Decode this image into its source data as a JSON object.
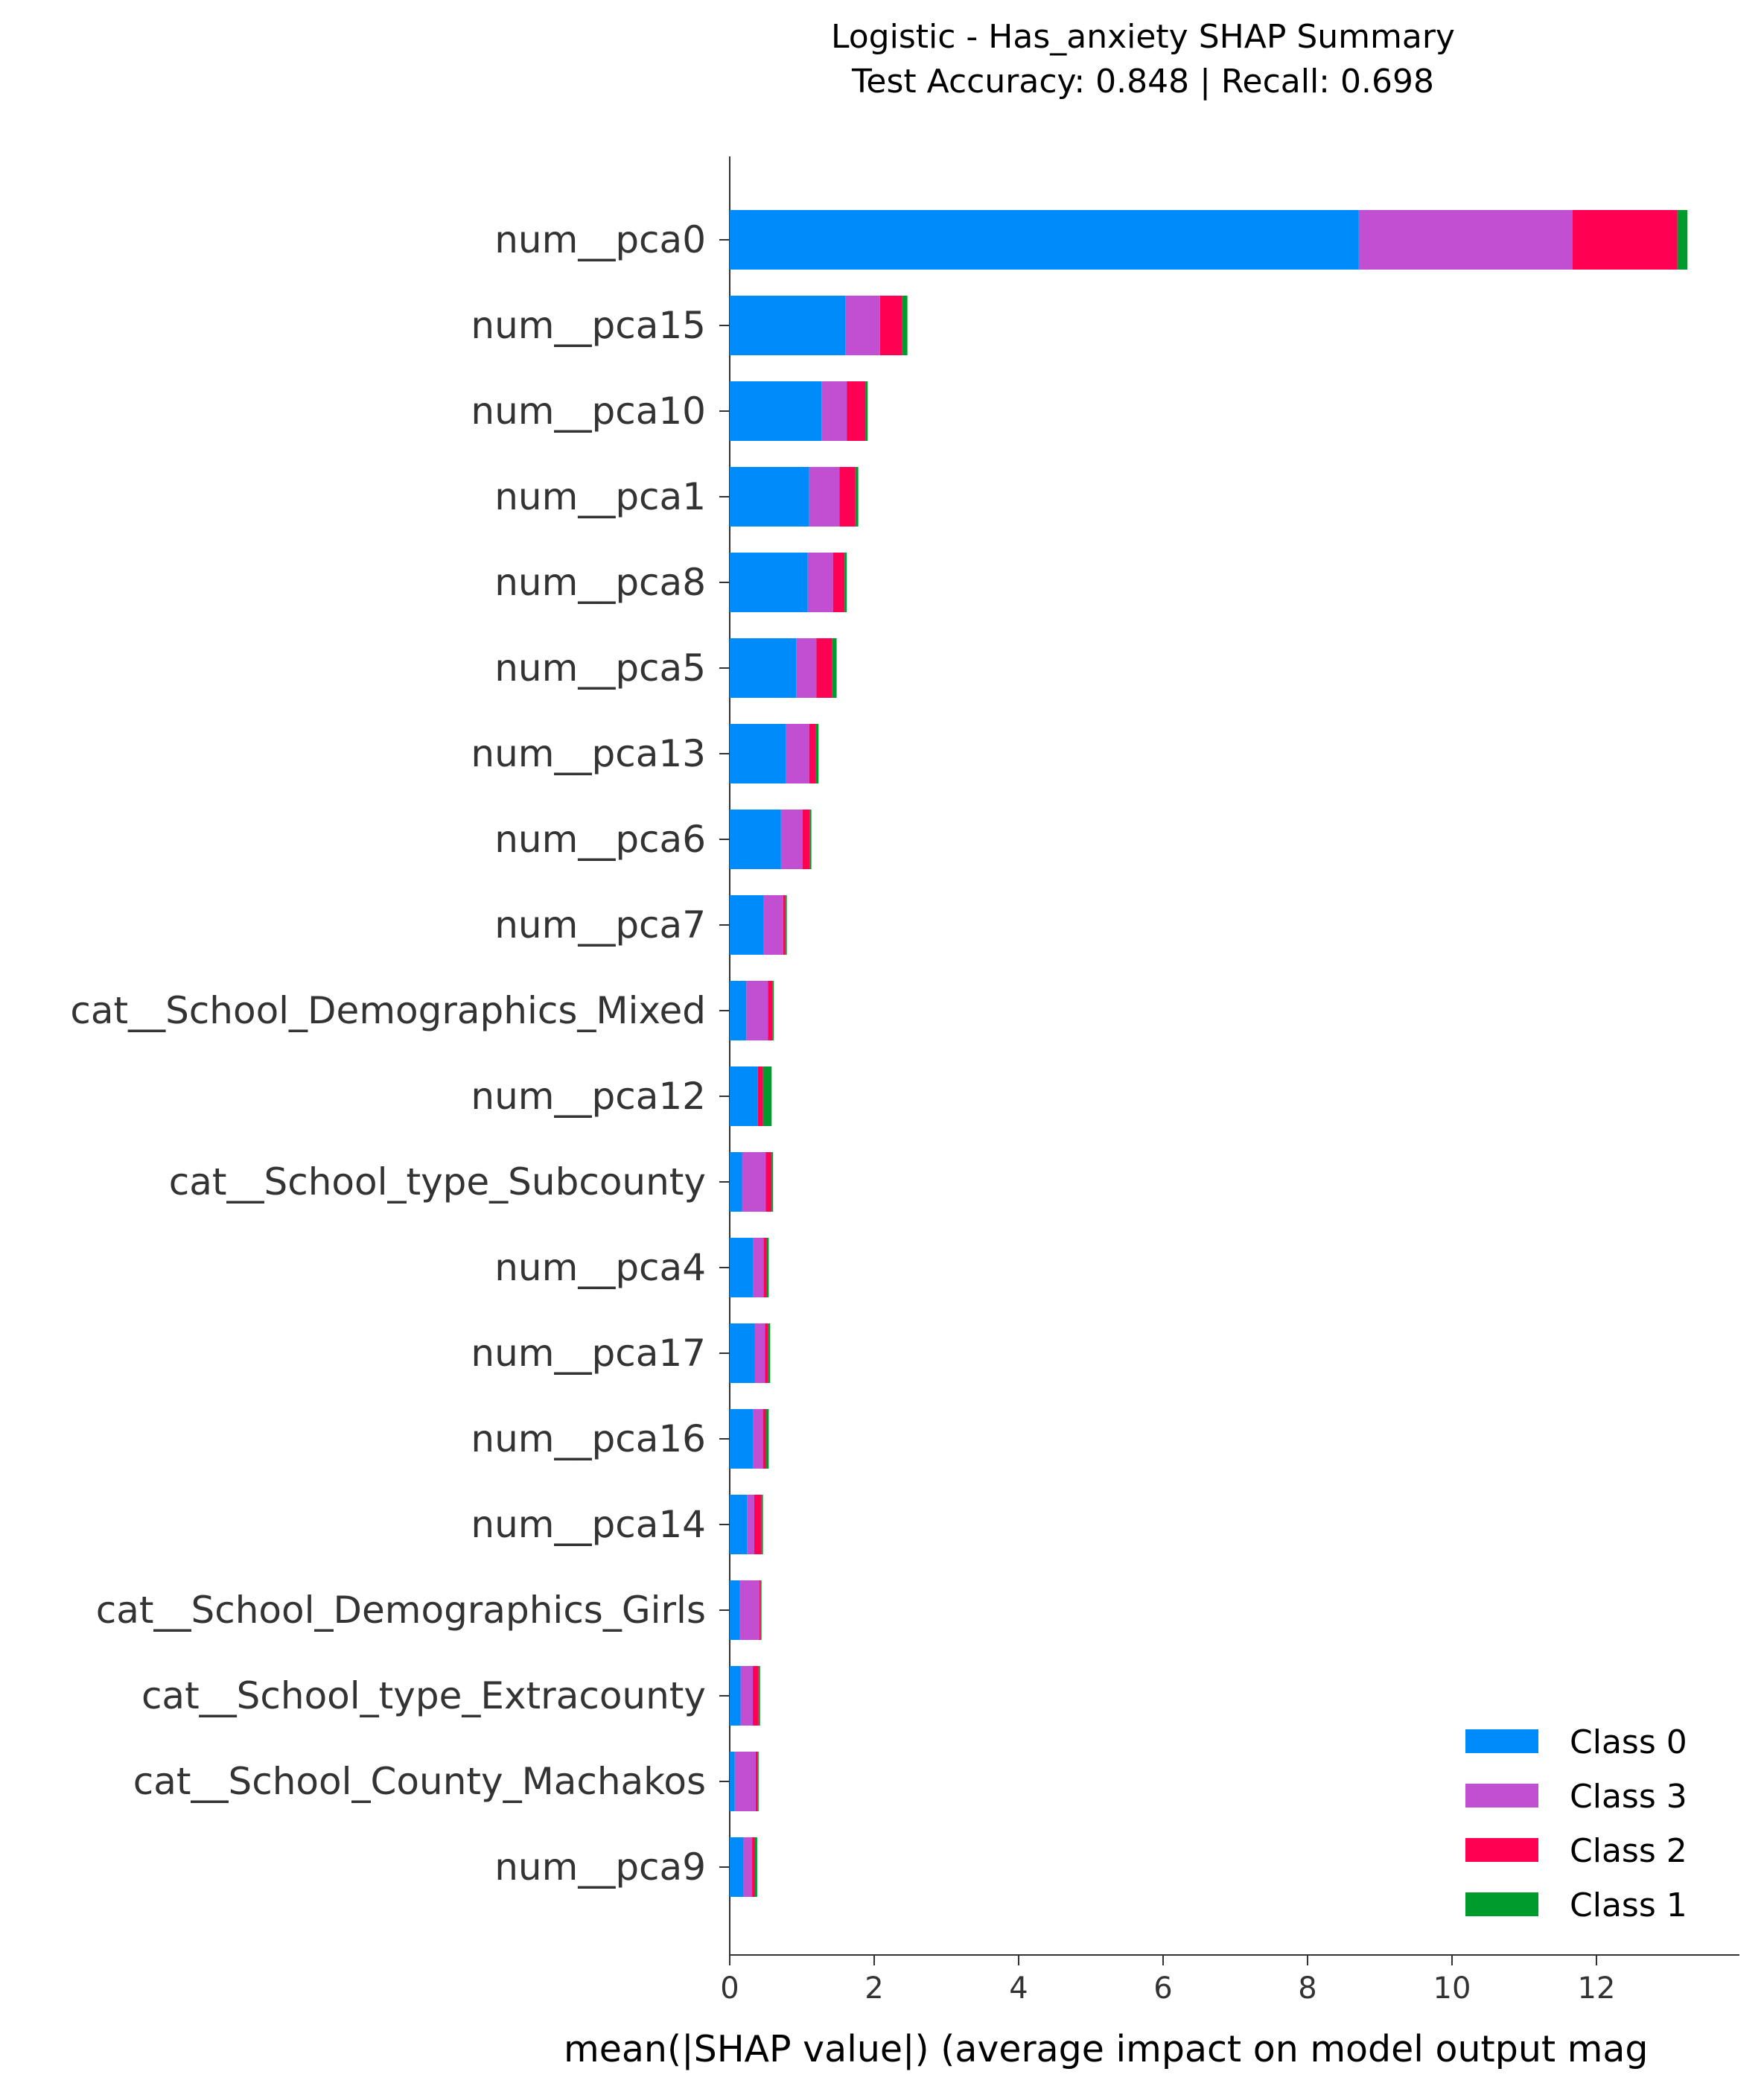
{
  "chart_data": {
    "type": "bar",
    "orientation": "horizontal",
    "stacked": true,
    "title": "Logistic - Has_anxiety SHAP Summary",
    "subtitle": "Test Accuracy: 0.848 | Recall: 0.698",
    "xlabel": "mean(|SHAP value|) (average impact on model output mag",
    "ylabel": "",
    "xlim": [
      0,
      13.9
    ],
    "xticks": [
      0,
      2,
      4,
      6,
      8,
      10,
      12
    ],
    "grid": false,
    "legend_position": "bottom-right",
    "categories": [
      "num__pca0",
      "num__pca15",
      "num__pca10",
      "num__pca1",
      "num__pca8",
      "num__pca5",
      "num__pca13",
      "num__pca6",
      "num__pca7",
      "cat__School_Demographics_Mixed",
      "num__pca12",
      "cat__School_type_Subcounty",
      "num__pca4",
      "num__pca17",
      "num__pca16",
      "num__pca14",
      "cat__School_Demographics_Girls",
      "cat__School_type_Extracounty",
      "cat__School_County_Machakos",
      "num__pca9"
    ],
    "series": [
      {
        "name": "Class 0",
        "color": "#008bfb",
        "values": [
          8.71,
          1.6,
          1.27,
          1.1,
          1.08,
          0.92,
          0.78,
          0.71,
          0.47,
          0.23,
          0.39,
          0.17,
          0.32,
          0.35,
          0.32,
          0.24,
          0.14,
          0.15,
          0.07,
          0.19
        ]
      },
      {
        "name": "Class 3",
        "color": "#c24fd1",
        "values": [
          2.96,
          0.48,
          0.35,
          0.42,
          0.35,
          0.28,
          0.32,
          0.3,
          0.27,
          0.3,
          0.0,
          0.33,
          0.15,
          0.14,
          0.14,
          0.1,
          0.27,
          0.17,
          0.29,
          0.12
        ]
      },
      {
        "name": "Class 2",
        "color": "#ff0052",
        "values": [
          1.45,
          0.31,
          0.26,
          0.22,
          0.16,
          0.22,
          0.09,
          0.1,
          0.03,
          0.06,
          0.07,
          0.08,
          0.04,
          0.04,
          0.04,
          0.1,
          0.02,
          0.08,
          0.03,
          0.04
        ]
      },
      {
        "name": "Class 1",
        "color": "#009b2d",
        "values": [
          0.14,
          0.07,
          0.03,
          0.04,
          0.03,
          0.06,
          0.04,
          0.02,
          0.02,
          0.02,
          0.12,
          0.02,
          0.03,
          0.03,
          0.04,
          0.02,
          0.01,
          0.02,
          0.01,
          0.03
        ]
      }
    ],
    "legend_order": [
      "Class 0",
      "Class 3",
      "Class 2",
      "Class 1"
    ]
  }
}
